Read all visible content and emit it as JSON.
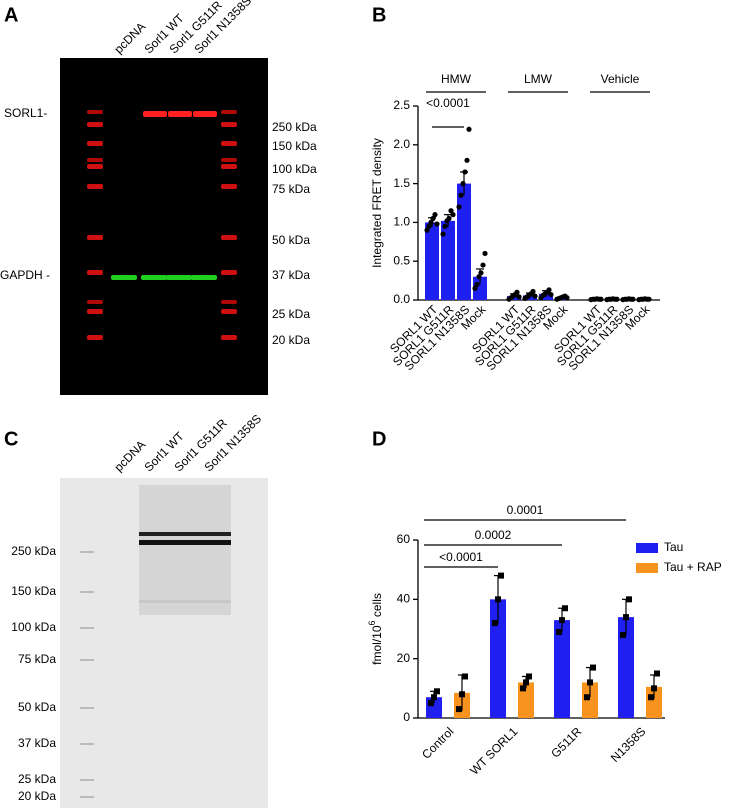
{
  "panel_labels": [
    "A",
    "B",
    "C",
    "D"
  ],
  "blot_a": {
    "lanes": [
      "pcDNA",
      "Sorl1 WT",
      "Sorl1 G511R",
      "Sorl1 N1358S"
    ],
    "bands": [
      "SORL1-",
      "GAPDH -"
    ],
    "markers": [
      "250 kDa",
      "150 kDa",
      "100 kDa",
      "75 kDa",
      "50 kDa",
      "37 kDa",
      "25 kDa",
      "20 kDa"
    ]
  },
  "blot_c": {
    "lanes": [
      "pcDNA",
      "Sorl1 WT",
      "Sorl1 G511R",
      "Sorl1 N1358S"
    ],
    "markers": [
      "250 kDa",
      "150 kDa",
      "100 kDa",
      "75 kDa",
      "50 kDa",
      "37 kDa",
      "25 kDa",
      "20 kDa"
    ]
  },
  "chart_data": [
    {
      "type": "bar",
      "ylabel": "Integrated FRET density",
      "groups": [
        "HMW",
        "LMW",
        "Vehicle"
      ],
      "categories": [
        "SORL1 WT",
        "SORL1 G511R",
        "SORL1 N1358S",
        "Mock",
        "SORL1 WT",
        "SORL1 G511R",
        "SORL1 N1358S",
        "Mock",
        "SORL1 WT",
        "SORL1 G511R",
        "SORL1 N1358S",
        "Mock"
      ],
      "values": [
        1.0,
        1.02,
        1.5,
        0.3,
        0.05,
        0.06,
        0.08,
        0.03,
        0.01,
        0.01,
        0.01,
        0.01
      ],
      "errors": [
        0.06,
        0.08,
        0.15,
        0.1,
        0.03,
        0.03,
        0.04,
        0.01,
        0.005,
        0.005,
        0.005,
        0.005
      ],
      "points": [
        [
          0.9,
          0.95,
          1.0,
          1.05,
          1.1,
          0.98
        ],
        [
          0.85,
          0.95,
          1.02,
          1.05,
          1.15,
          1.1
        ],
        [
          1.2,
          1.35,
          1.5,
          1.65,
          1.8,
          2.2
        ],
        [
          0.15,
          0.2,
          0.3,
          0.35,
          0.45,
          0.6
        ],
        [
          0.01,
          0.03,
          0.05,
          0.07,
          0.1,
          0.04
        ],
        [
          0.02,
          0.04,
          0.06,
          0.08,
          0.11,
          0.05
        ],
        [
          0.03,
          0.06,
          0.08,
          0.1,
          0.13,
          0.07
        ],
        [
          0.01,
          0.02,
          0.03,
          0.04,
          0.05,
          0.03
        ],
        [
          0.005,
          0.01,
          0.01,
          0.015,
          0.01,
          0.01
        ],
        [
          0.005,
          0.01,
          0.01,
          0.015,
          0.01,
          0.01
        ],
        [
          0.005,
          0.01,
          0.01,
          0.015,
          0.01,
          0.01
        ],
        [
          0.005,
          0.01,
          0.01,
          0.015,
          0.01,
          0.01
        ]
      ],
      "color": "#1f1ff0",
      "ylim": [
        0,
        2.5
      ],
      "yticks": [
        {
          "value": 0,
          "label": "0.0"
        },
        0.5,
        {
          "value": 1,
          "label": "1.0"
        },
        1.5,
        {
          "value": 2,
          "label": "2.0"
        },
        2.5
      ],
      "annotations": [
        {
          "text": "<0.0001",
          "from": 0,
          "to": 2
        }
      ]
    },
    {
      "type": "grouped_bar",
      "ylabel": [
        "fmol/10",
        "6",
        " cells"
      ],
      "categories": [
        "Control",
        "WT SORL1",
        "G511R",
        "N1358S"
      ],
      "series": [
        {
          "name": "Tau",
          "color": "#1f1ff0",
          "values": [
            7,
            40,
            33,
            34
          ],
          "errors": [
            2,
            8,
            4,
            6
          ],
          "points": [
            [
              5,
              7,
              9
            ],
            [
              32,
              40,
              48
            ],
            [
              29,
              33,
              37
            ],
            [
              28,
              34,
              40
            ]
          ]
        },
        {
          "name": "Tau + RAP",
          "color": "#f7931e",
          "values": [
            8.5,
            12,
            12,
            10.5
          ],
          "errors": [
            6,
            2,
            5,
            4
          ],
          "points": [
            [
              3,
              8,
              14
            ],
            [
              10,
              12,
              14
            ],
            [
              7,
              12,
              17
            ],
            [
              7,
              10,
              15
            ]
          ]
        }
      ],
      "ylim": [
        0,
        60
      ],
      "yticks": [
        0,
        20,
        40,
        60
      ],
      "legend": "top-right",
      "annotations": [
        {
          "text": "<0.0001",
          "to": 1
        },
        {
          "text": "0.0002",
          "to": 2
        },
        {
          "text": "0.0001",
          "to": 3
        }
      ]
    }
  ]
}
